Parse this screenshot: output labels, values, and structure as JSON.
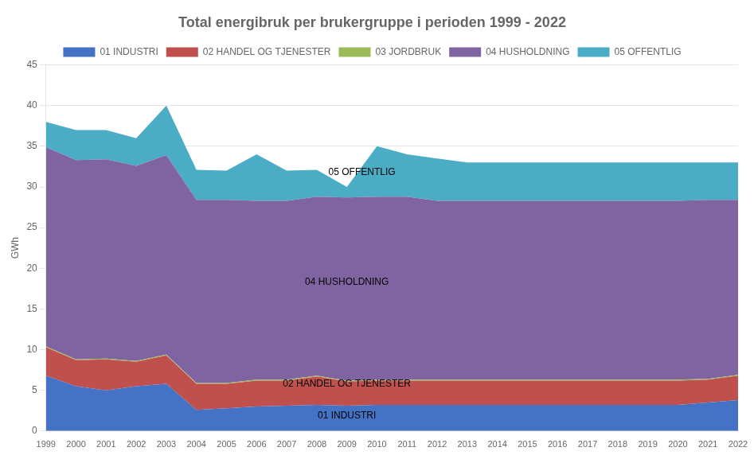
{
  "chart_data": {
    "type": "area",
    "stacked": true,
    "title": "Total energibruk per brukergruppe i perioden 1999 - 2022",
    "ylabel": "GWh",
    "x": [
      1999,
      2000,
      2001,
      2002,
      2003,
      2004,
      2005,
      2006,
      2007,
      2008,
      2009,
      2010,
      2011,
      2012,
      2013,
      2014,
      2015,
      2016,
      2017,
      2018,
      2019,
      2020,
      2021,
      2022
    ],
    "xlim": [
      1999,
      2022
    ],
    "xticks": [
      1999,
      2000,
      2001,
      2002,
      2003,
      2004,
      2005,
      2006,
      2007,
      2008,
      2009,
      2010,
      2011,
      2012,
      2013,
      2014,
      2015,
      2016,
      2017,
      2018,
      2019,
      2020,
      2021,
      2022
    ],
    "ylim": [
      0,
      45
    ],
    "yticks": [
      0,
      5,
      10,
      15,
      20,
      25,
      30,
      35,
      40,
      45
    ],
    "grid": "y",
    "legend": "top",
    "series": [
      {
        "name": "01 INDUSTRI",
        "color": "#4472C4",
        "values": [
          6.8,
          5.5,
          5.0,
          5.5,
          5.8,
          2.6,
          2.8,
          3.0,
          3.1,
          3.2,
          3.1,
          3.2,
          3.2,
          3.2,
          3.2,
          3.2,
          3.2,
          3.2,
          3.2,
          3.2,
          3.2,
          3.2,
          3.5,
          3.8
        ]
      },
      {
        "name": "02 HANDEL OG TJENESTER",
        "color": "#C0504D",
        "values": [
          3.5,
          3.2,
          3.8,
          3.0,
          3.5,
          3.2,
          3.0,
          3.2,
          3.1,
          3.5,
          3.0,
          3.0,
          3.0,
          3.0,
          3.0,
          3.0,
          3.0,
          3.0,
          3.0,
          3.0,
          3.0,
          3.0,
          2.8,
          3.0
        ]
      },
      {
        "name": "03 JORDBRUK",
        "color": "#9BBB59",
        "values": [
          0.1,
          0.1,
          0.1,
          0.1,
          0.1,
          0.1,
          0.1,
          0.1,
          0.1,
          0.1,
          0.1,
          0.1,
          0.1,
          0.1,
          0.1,
          0.1,
          0.1,
          0.1,
          0.1,
          0.1,
          0.1,
          0.1,
          0.1,
          0.1
        ]
      },
      {
        "name": "04 HUSHOLDNING",
        "color": "#8064A2",
        "values": [
          24.5,
          24.5,
          24.5,
          24.0,
          24.5,
          22.5,
          22.5,
          22.0,
          22.0,
          22.0,
          22.5,
          22.5,
          22.5,
          22.0,
          22.0,
          22.0,
          22.0,
          22.0,
          22.0,
          22.0,
          22.0,
          22.0,
          22.0,
          21.5
        ]
      },
      {
        "name": "05 OFFENTLIG",
        "color": "#4BACC6",
        "values": [
          3.1,
          3.7,
          3.6,
          3.4,
          6.1,
          3.7,
          3.6,
          5.7,
          3.7,
          3.3,
          1.3,
          6.2,
          5.2,
          5.2,
          4.7,
          4.7,
          4.7,
          4.7,
          4.7,
          4.7,
          4.7,
          4.7,
          4.6,
          4.6
        ]
      }
    ],
    "annotations": [
      {
        "text": "01 INDUSTRI",
        "x": 2009,
        "y": 1.5
      },
      {
        "text": "02 HANDEL OG TJENESTER",
        "x": 2009,
        "y": 5.5
      },
      {
        "text": "04 HUSHOLDNING",
        "x": 2009,
        "y": 18.0
      },
      {
        "text": "05 OFFENTLIG",
        "x": 2009.5,
        "y": 31.5
      }
    ]
  }
}
